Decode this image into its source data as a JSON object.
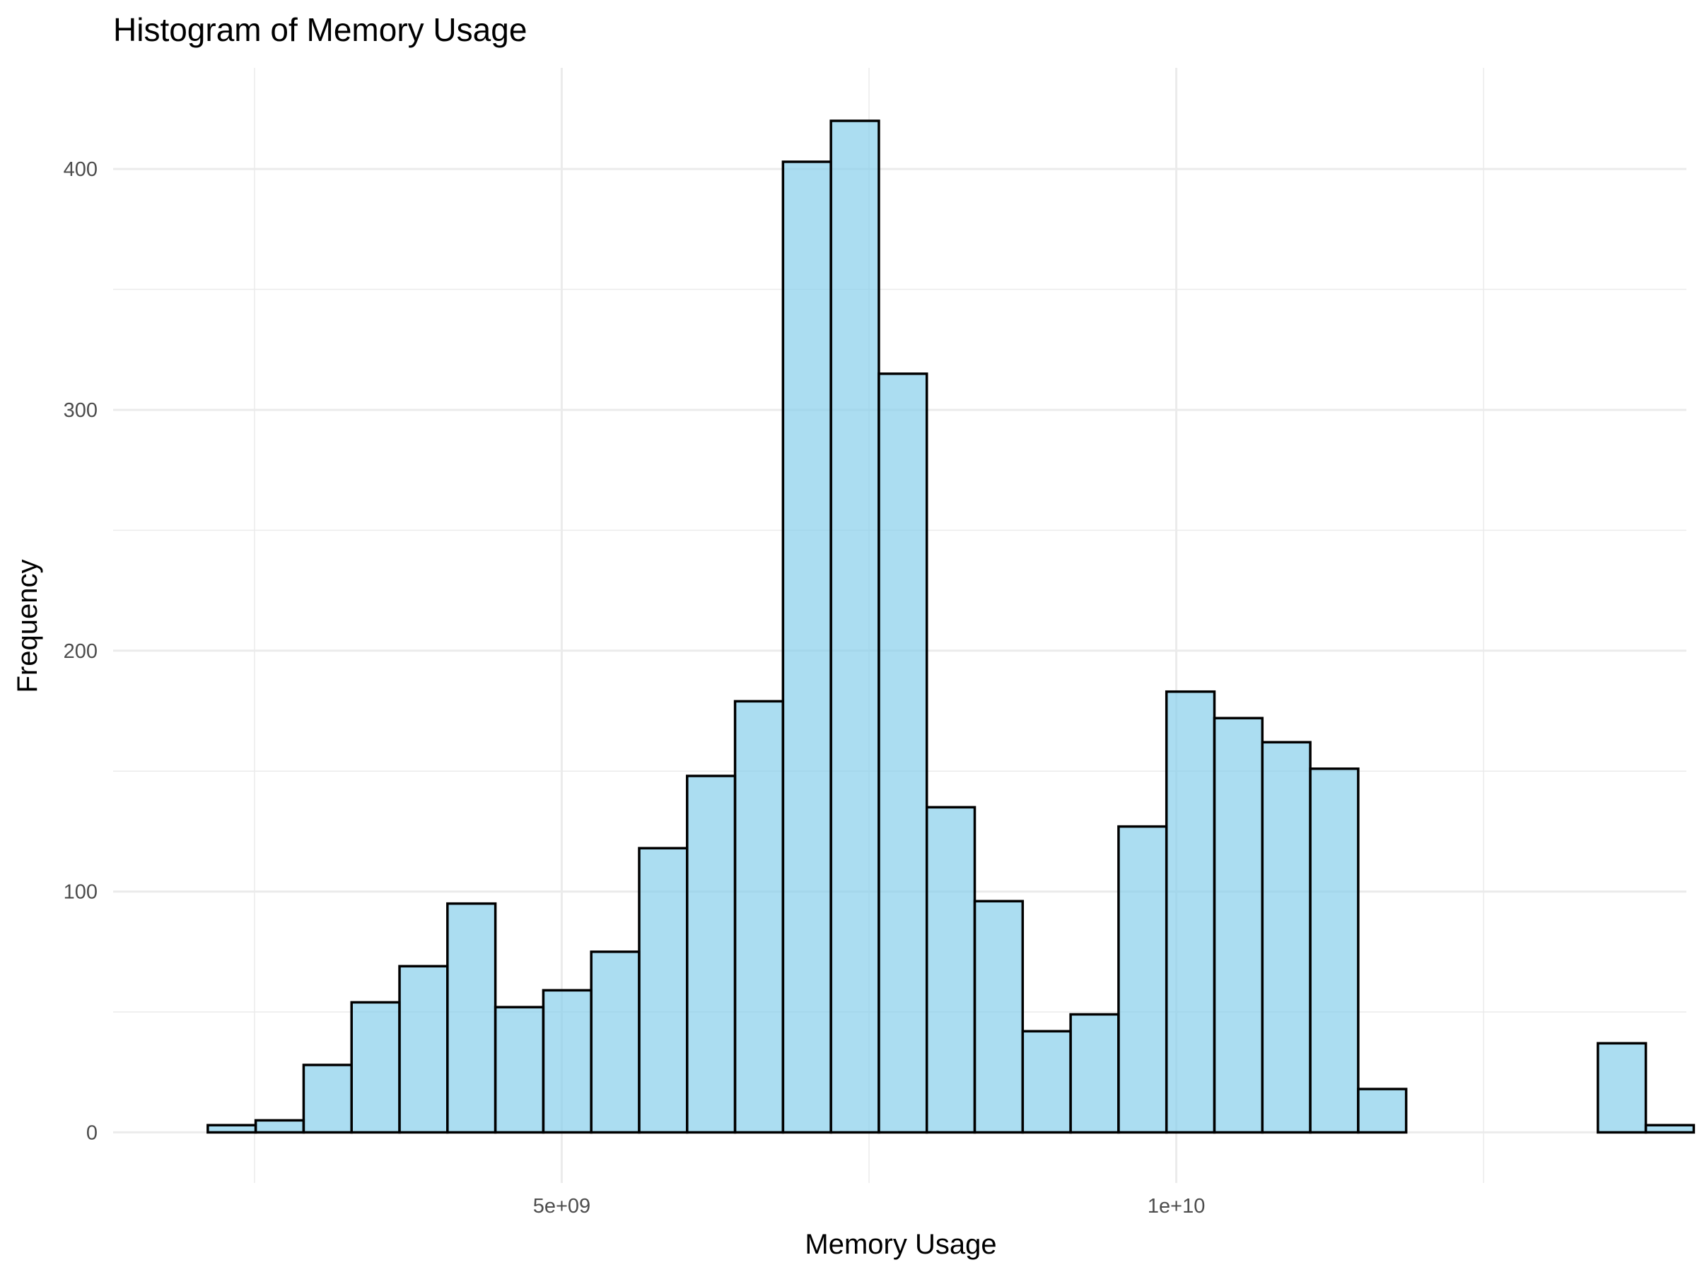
{
  "chart_data": {
    "type": "bar",
    "title": "Histogram of Memory Usage",
    "xlabel": "Memory Usage",
    "ylabel": "Frequency",
    "bin_width": 390000000,
    "first_bin_start": 2120000000,
    "bin_counts": [
      3,
      5,
      28,
      54,
      69,
      95,
      52,
      59,
      75,
      118,
      148,
      179,
      403,
      420,
      315,
      135,
      96,
      42,
      49,
      127,
      183,
      172,
      162,
      151,
      18,
      0,
      0,
      0,
      0,
      37,
      3
    ],
    "xlim": [
      1350000000,
      14150000000
    ],
    "ylim": [
      -21,
      442
    ],
    "x_ticks": [
      5000000000,
      10000000000
    ],
    "x_tick_labels": [
      "5e+09",
      "1e+10"
    ],
    "x_minor_ticks": [
      2500000000,
      7500000000,
      12500000000
    ],
    "y_ticks": [
      0,
      100,
      200,
      300,
      400
    ],
    "y_tick_labels": [
      "0",
      "100",
      "200",
      "300",
      "400"
    ],
    "y_minor_ticks": [
      50,
      150,
      250,
      350
    ],
    "grid": true,
    "legend": "none",
    "colors": {
      "bar_fill": "#87ceeb",
      "bar_outline": "#000000",
      "grid": "#ebebeb",
      "tick_text": "#4d4d4d"
    }
  }
}
